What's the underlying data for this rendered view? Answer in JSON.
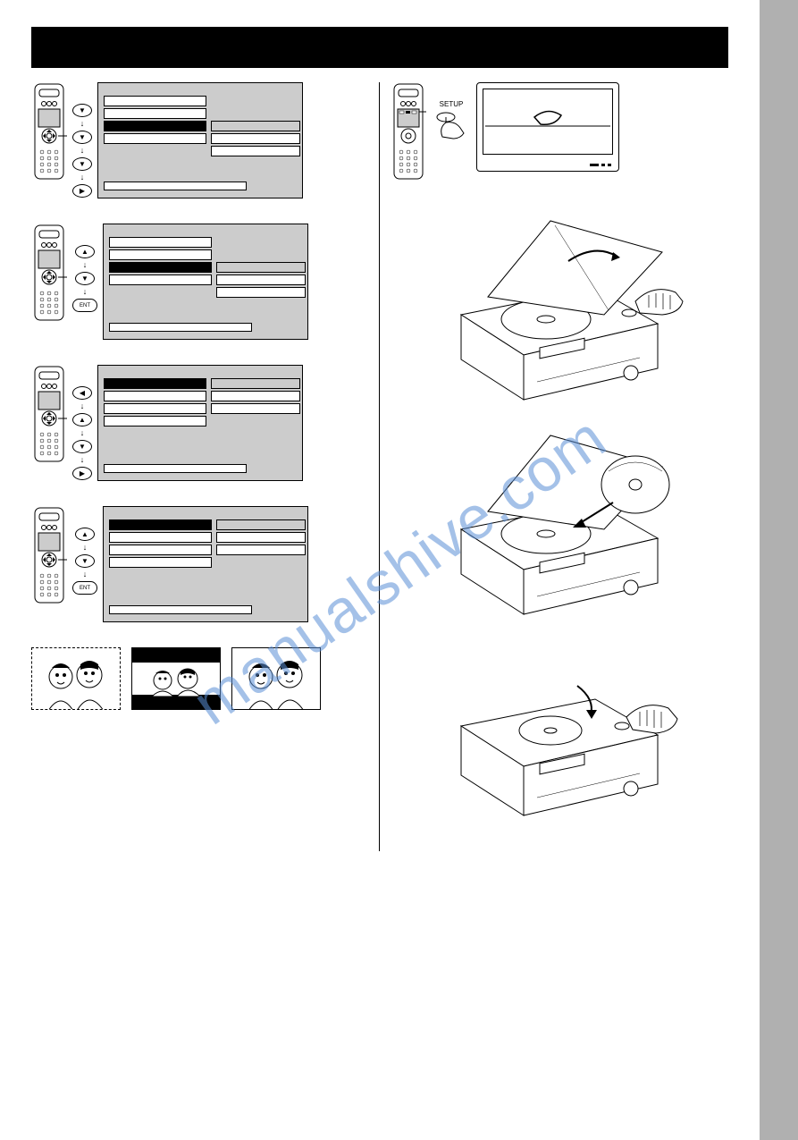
{
  "watermark_text": "manualshive.com",
  "watermark_color": "#5a8fd6",
  "setup_label": "SETUP",
  "ent_label": "ENT",
  "arrows": {
    "down": "▼",
    "up": "▲",
    "left": "◀",
    "right": "▶",
    "connector": "↓"
  },
  "colors": {
    "page_bg": "#ffffff",
    "strip_bg": "#b0b0b0",
    "bar_bg": "#000000",
    "menu_bg": "#cccccc",
    "line": "#000000"
  },
  "left_steps": [
    {
      "buttons": [
        "down",
        "down",
        "down",
        "right"
      ],
      "selected_row": 2,
      "submenu_rows": 3
    },
    {
      "buttons": [
        "up",
        "down",
        "ENT"
      ],
      "selected_row": 2,
      "submenu_rows": 3
    },
    {
      "buttons": [
        "left",
        "up",
        "down",
        "right"
      ],
      "selected_row": 0,
      "submenu_rows": 3
    },
    {
      "buttons": [
        "up",
        "down",
        "ENT"
      ],
      "selected_row": 0,
      "submenu_rows": 3
    }
  ],
  "tv_modes": [
    {
      "style": "dashed",
      "band": false
    },
    {
      "style": "solid",
      "band": true
    },
    {
      "style": "solid",
      "band": false
    }
  ]
}
